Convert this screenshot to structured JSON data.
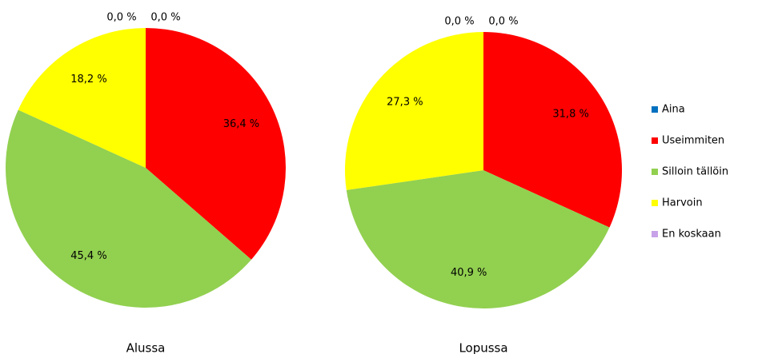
{
  "chart_data": [
    {
      "type": "pie",
      "title": "Alussa",
      "categories": [
        "Aina",
        "Useimmiten",
        "Silloin tällöin",
        "Harvoin",
        "En koskaan"
      ],
      "values": [
        0,
        36.4,
        45.4,
        18.2,
        0
      ],
      "value_labels": [
        "0,0 %",
        "36,4 %",
        "45,4 %",
        "18,2 %",
        "0,0 %"
      ],
      "colors": [
        "#0070c0",
        "#ff0000",
        "#92d050",
        "#ffff00",
        "#c8a2e8"
      ],
      "legend": "right"
    },
    {
      "type": "pie",
      "title": "Lopussa",
      "categories": [
        "Aina",
        "Useimmiten",
        "Silloin tällöin",
        "Harvoin",
        "En koskaan"
      ],
      "values": [
        0,
        31.8,
        40.9,
        27.3,
        0
      ],
      "value_labels": [
        "0,0 %",
        "31,8 %",
        "40,9 %",
        "27,3 %",
        "0,0 %"
      ],
      "colors": [
        "#0070c0",
        "#ff0000",
        "#92d050",
        "#ffff00",
        "#c8a2e8"
      ]
    }
  ]
}
